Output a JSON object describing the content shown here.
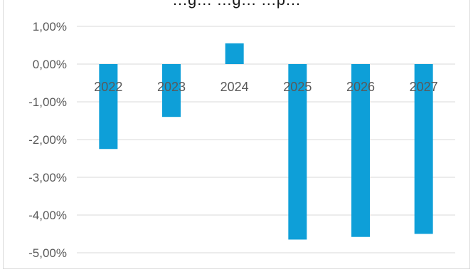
{
  "chart_data": {
    "type": "bar",
    "title": "…g…  …g…  …p…",
    "categories": [
      "2022",
      "2023",
      "2024",
      "2025",
      "2026",
      "2027"
    ],
    "values": [
      -2.25,
      -1.4,
      0.55,
      -4.65,
      -4.58,
      -4.5
    ],
    "ylim": [
      -5.0,
      1.0
    ],
    "yticks": [
      "1,00%",
      "0,00%",
      "-1,00%",
      "-2,00%",
      "-3,00%",
      "-4,00%",
      "-5,00%"
    ],
    "ytick_values": [
      1,
      0,
      -1,
      -2,
      -3,
      -4,
      -5
    ],
    "xlabel": "",
    "ylabel": "",
    "grid": true,
    "legend": "none",
    "colors": {
      "bar": "#0e9fd8",
      "grid": "#d9d9d9",
      "text": "#595959"
    }
  }
}
